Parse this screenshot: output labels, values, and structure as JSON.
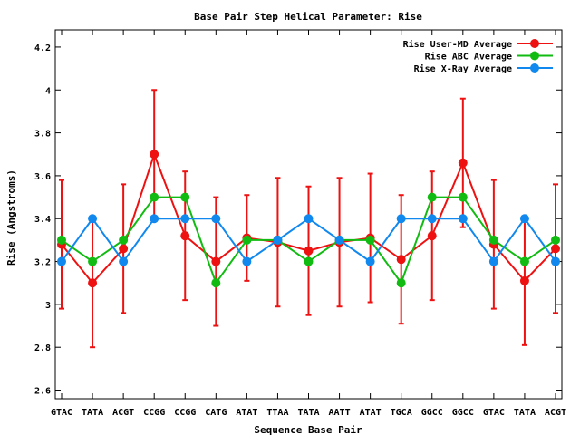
{
  "chart_data": {
    "type": "line",
    "title": "Base Pair Step Helical Parameter: Rise",
    "xlabel": "Sequence Base Pair",
    "ylabel": "Rise (Angstroms)",
    "categories": [
      "GTAC",
      "TATA",
      "ACGT",
      "CCGG",
      "CCGG",
      "CATG",
      "ATAT",
      "TTAA",
      "TATA",
      "AATT",
      "ATAT",
      "TGCA",
      "GGCC",
      "GGCC",
      "GTAC",
      "TATA",
      "ACGT"
    ],
    "ylim": [
      2.56,
      4.28
    ],
    "yticks": [
      2.6,
      2.8,
      3,
      3.2,
      3.4,
      3.6,
      3.8,
      4,
      4.2
    ],
    "ytick_labels": [
      "2.6",
      "2.8",
      "3",
      "3.2",
      "3.4",
      "3.6",
      "3.8",
      "4",
      "4.2"
    ],
    "grid": false,
    "legend_position": "top-right",
    "series": [
      {
        "name": "Rise User-MD Average",
        "color": "#ee1111",
        "values": [
          3.28,
          3.1,
          3.26,
          3.7,
          3.32,
          3.2,
          3.31,
          3.29,
          3.25,
          3.29,
          3.31,
          3.21,
          3.32,
          3.66,
          3.28,
          3.11,
          3.26
        ],
        "error_high": [
          3.58,
          3.4,
          3.56,
          4.0,
          3.62,
          3.5,
          3.51,
          3.59,
          3.55,
          3.59,
          3.61,
          3.51,
          3.62,
          3.96,
          3.58,
          3.41,
          3.56
        ],
        "error_low": [
          2.98,
          2.8,
          2.96,
          3.4,
          3.02,
          2.9,
          3.11,
          2.99,
          2.95,
          2.99,
          3.01,
          2.91,
          3.02,
          3.36,
          2.98,
          2.81,
          2.96
        ]
      },
      {
        "name": "Rise ABC Average",
        "color": "#11bb11",
        "values": [
          3.3,
          3.2,
          3.3,
          3.5,
          3.5,
          3.1,
          3.3,
          3.3,
          3.2,
          3.3,
          3.3,
          3.1,
          3.5,
          3.5,
          3.3,
          3.2,
          3.3
        ]
      },
      {
        "name": "Rise X-Ray Average",
        "color": "#1188ee",
        "values": [
          3.2,
          3.4,
          3.2,
          3.4,
          3.4,
          3.4,
          3.2,
          3.3,
          3.4,
          3.3,
          3.2,
          3.4,
          3.4,
          3.4,
          3.2,
          3.4,
          3.2
        ]
      }
    ]
  }
}
